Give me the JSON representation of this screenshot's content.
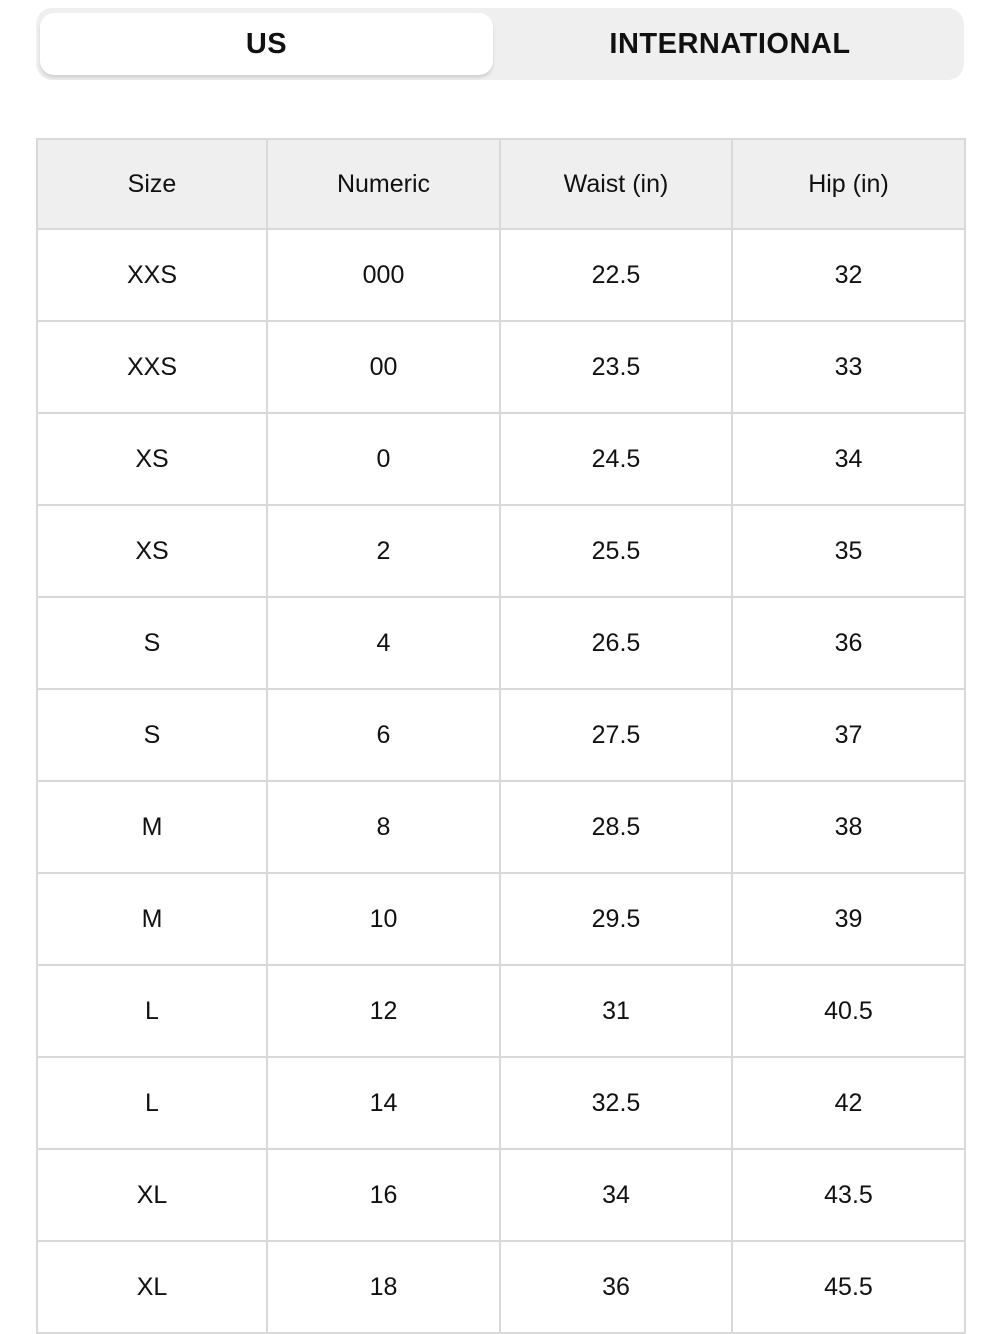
{
  "tabs": [
    {
      "label": "US",
      "selected": true
    },
    {
      "label": "INTERNATIONAL",
      "selected": false
    }
  ],
  "table": {
    "headers": [
      "Size",
      "Numeric",
      "Waist (in)",
      "Hip (in)"
    ],
    "rows": [
      [
        "XXS",
        "000",
        "22.5",
        "32"
      ],
      [
        "XXS",
        "00",
        "23.5",
        "33"
      ],
      [
        "XS",
        "0",
        "24.5",
        "34"
      ],
      [
        "XS",
        "2",
        "25.5",
        "35"
      ],
      [
        "S",
        "4",
        "26.5",
        "36"
      ],
      [
        "S",
        "6",
        "27.5",
        "37"
      ],
      [
        "M",
        "8",
        "28.5",
        "38"
      ],
      [
        "M",
        "10",
        "29.5",
        "39"
      ],
      [
        "L",
        "12",
        "31",
        "40.5"
      ],
      [
        "L",
        "14",
        "32.5",
        "42"
      ],
      [
        "XL",
        "16",
        "34",
        "43.5"
      ],
      [
        "XL",
        "18",
        "36",
        "45.5"
      ]
    ]
  }
}
